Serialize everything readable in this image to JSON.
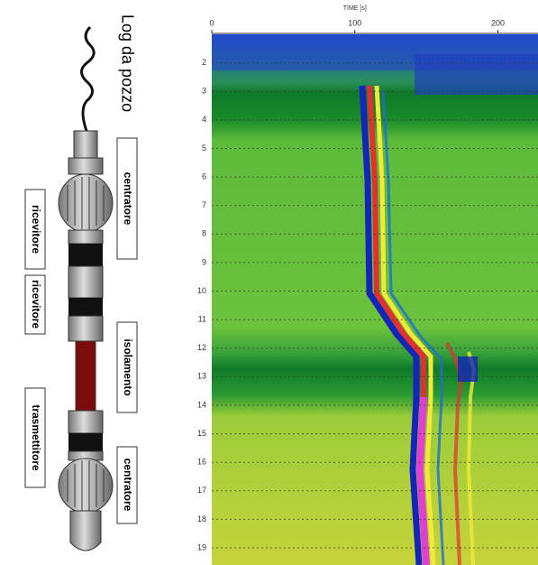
{
  "diagram": {
    "title": "Log da pozzo",
    "labels": [
      "centratore",
      "ricevitore",
      "ricevitore",
      "isolamento",
      "trasmettitore",
      "centratore"
    ]
  },
  "chart_data": {
    "type": "heatmap",
    "x_label": "TIME [s]",
    "xlim": [
      0,
      228
    ],
    "xticks": [
      0,
      100,
      200
    ],
    "ylim": [
      1,
      19.6
    ],
    "yticks": [
      2,
      3,
      4,
      5,
      6,
      7,
      8,
      9,
      10,
      11,
      12,
      13,
      14,
      15,
      16,
      17,
      18,
      19
    ],
    "grid": true
  }
}
